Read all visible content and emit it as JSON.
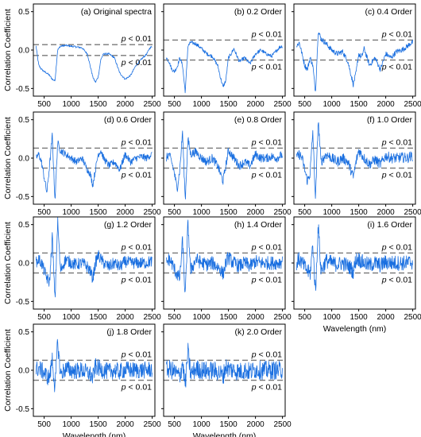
{
  "figure": {
    "ylabel": "Correlation Coefficient",
    "xlabel": "Wavelength (nm)",
    "threshold_label": "p < 0.01",
    "line_color": "#1a6fe0",
    "threshold_color": "#777777"
  },
  "chart_data": [
    {
      "type": "line",
      "title": "(a) Original spectra",
      "xlim": [
        300,
        2550
      ],
      "ylim": [
        -0.6,
        0.6
      ],
      "xticks": [
        500,
        1000,
        1500,
        2000,
        2500
      ],
      "yticks": [
        -0.5,
        0.0,
        0.5
      ],
      "threshold": [
        0.07,
        -0.07
      ],
      "x": [
        350,
        400,
        450,
        500,
        550,
        600,
        650,
        700,
        750,
        800,
        900,
        1000,
        1100,
        1200,
        1300,
        1350,
        1400,
        1450,
        1500,
        1550,
        1600,
        1700,
        1800,
        1900,
        2000,
        2100,
        2200,
        2300,
        2400,
        2450,
        2500
      ],
      "y": [
        0.05,
        -0.2,
        -0.25,
        -0.28,
        -0.3,
        -0.33,
        -0.38,
        -0.4,
        0.0,
        0.05,
        0.06,
        0.05,
        0.04,
        0.03,
        -0.05,
        -0.2,
        -0.35,
        -0.42,
        -0.35,
        -0.12,
        -0.05,
        -0.05,
        -0.1,
        -0.3,
        -0.38,
        -0.33,
        -0.2,
        -0.12,
        -0.05,
        0.02,
        0.05
      ]
    },
    {
      "type": "line",
      "title": "(b) 0.2 Order",
      "xlim": [
        300,
        2550
      ],
      "ylim": [
        -0.6,
        0.6
      ],
      "xticks": [
        500,
        1000,
        1500,
        2000,
        2500
      ],
      "yticks": [
        -0.5,
        0.0,
        0.5
      ],
      "threshold": [
        0.13,
        -0.13
      ],
      "x": [
        350,
        400,
        450,
        500,
        550,
        600,
        650,
        700,
        750,
        800,
        900,
        1000,
        1100,
        1200,
        1300,
        1350,
        1400,
        1450,
        1500,
        1550,
        1600,
        1700,
        1800,
        1900,
        2000,
        2100,
        2200,
        2300,
        2400,
        2450,
        2500
      ],
      "y": [
        -0.1,
        -0.15,
        -0.25,
        -0.28,
        -0.22,
        -0.1,
        -0.2,
        -0.55,
        0.05,
        0.1,
        0.08,
        0.02,
        -0.05,
        -0.08,
        -0.2,
        -0.35,
        -0.48,
        -0.4,
        -0.1,
        -0.05,
        0.02,
        -0.15,
        -0.1,
        -0.18,
        -0.05,
        0.0,
        -0.05,
        -0.08,
        0.0,
        0.04,
        0.05
      ]
    },
    {
      "type": "line",
      "title": "(c) 0.4 Order",
      "xlim": [
        300,
        2550
      ],
      "ylim": [
        -0.6,
        0.6
      ],
      "xticks": [
        500,
        1000,
        1500,
        2000,
        2500
      ],
      "yticks": [
        -0.5,
        0.0,
        0.5
      ],
      "threshold": [
        0.13,
        -0.13
      ],
      "x": [
        350,
        400,
        450,
        500,
        550,
        600,
        650,
        700,
        750,
        800,
        900,
        1000,
        1100,
        1200,
        1300,
        1350,
        1400,
        1450,
        1500,
        1550,
        1600,
        1700,
        1800,
        1900,
        2000,
        2100,
        2200,
        2300,
        2400,
        2450,
        2500
      ],
      "y": [
        0.05,
        0.1,
        -0.05,
        -0.2,
        -0.25,
        -0.1,
        -0.2,
        -0.55,
        0.25,
        0.15,
        0.08,
        0.0,
        -0.05,
        -0.02,
        -0.15,
        -0.3,
        -0.45,
        -0.3,
        -0.05,
        -0.1,
        0.02,
        -0.2,
        -0.1,
        -0.25,
        -0.05,
        -0.1,
        -0.02,
        0.0,
        0.05,
        0.08,
        0.1
      ]
    },
    {
      "type": "line",
      "title": "(d) 0.6 Order",
      "xlim": [
        300,
        2550
      ],
      "ylim": [
        -0.6,
        0.6
      ],
      "xticks": [
        500,
        1000,
        1500,
        2000,
        2500
      ],
      "yticks": [
        -0.5,
        0.0,
        0.5
      ],
      "threshold": [
        0.13,
        -0.13
      ],
      "x": [
        350,
        400,
        450,
        500,
        550,
        600,
        650,
        700,
        750,
        800,
        900,
        1000,
        1100,
        1200,
        1300,
        1350,
        1400,
        1450,
        1500,
        1550,
        1600,
        1700,
        1800,
        1900,
        2000,
        2100,
        2200,
        2300,
        2400,
        2450,
        2500
      ],
      "y": [
        0.0,
        0.05,
        -0.05,
        -0.25,
        -0.45,
        -0.1,
        0.3,
        -0.55,
        0.2,
        0.1,
        0.05,
        0.0,
        -0.05,
        0.0,
        -0.15,
        -0.2,
        -0.35,
        -0.15,
        0.05,
        0.1,
        0.0,
        -0.1,
        -0.05,
        -0.15,
        0.05,
        -0.05,
        0.0,
        0.02,
        0.0,
        0.03,
        0.05
      ]
    },
    {
      "type": "line",
      "title": "(e) 0.8 Order",
      "xlim": [
        300,
        2550
      ],
      "ylim": [
        -0.6,
        0.6
      ],
      "xticks": [
        500,
        1000,
        1500,
        2000,
        2500
      ],
      "yticks": [
        -0.5,
        0.0,
        0.5
      ],
      "threshold": [
        0.13,
        -0.13
      ],
      "x": [
        350,
        400,
        450,
        500,
        550,
        600,
        650,
        700,
        750,
        800,
        900,
        1000,
        1100,
        1200,
        1300,
        1350,
        1400,
        1450,
        1500,
        1550,
        1600,
        1700,
        1800,
        1900,
        2000,
        2100,
        2200,
        2300,
        2400,
        2450,
        2500
      ],
      "y": [
        0.0,
        0.05,
        -0.05,
        -0.2,
        -0.4,
        -0.15,
        0.35,
        -0.55,
        0.25,
        0.05,
        0.08,
        0.0,
        -0.05,
        0.0,
        -0.1,
        -0.2,
        -0.3,
        -0.1,
        0.1,
        0.05,
        0.0,
        -0.1,
        -0.05,
        -0.1,
        0.05,
        0.0,
        0.0,
        0.02,
        0.0,
        0.03,
        0.04
      ]
    },
    {
      "type": "line",
      "title": "(f) 1.0 Order",
      "xlim": [
        300,
        2550
      ],
      "ylim": [
        -0.6,
        0.6
      ],
      "xticks": [
        500,
        1000,
        1500,
        2000,
        2500
      ],
      "yticks": [
        -0.5,
        0.0,
        0.5
      ],
      "threshold": [
        0.13,
        -0.13
      ],
      "x": [
        350,
        400,
        450,
        500,
        550,
        600,
        650,
        700,
        750,
        800,
        900,
        1000,
        1100,
        1200,
        1300,
        1350,
        1400,
        1450,
        1500,
        1550,
        1600,
        1700,
        1800,
        1900,
        2000,
        2100,
        2200,
        2300,
        2400,
        2450,
        2500
      ],
      "y": [
        0.0,
        0.05,
        0.0,
        -0.15,
        -0.3,
        -0.2,
        0.35,
        -0.55,
        0.5,
        -0.05,
        0.05,
        0.0,
        -0.05,
        0.0,
        -0.05,
        -0.15,
        -0.25,
        -0.05,
        0.1,
        0.05,
        0.0,
        -0.08,
        -0.02,
        -0.08,
        0.03,
        0.0,
        0.0,
        0.01,
        0.0,
        0.02,
        0.03
      ]
    },
    {
      "type": "line",
      "title": "(g) 1.2 Order",
      "xlim": [
        300,
        2550
      ],
      "ylim": [
        -0.6,
        0.6
      ],
      "xticks": [
        500,
        1000,
        1500,
        2000,
        2500
      ],
      "yticks": [
        -0.5,
        0.0,
        0.5
      ],
      "threshold": [
        0.13,
        -0.13
      ],
      "x": [
        350,
        400,
        450,
        500,
        550,
        600,
        650,
        700,
        750,
        800,
        900,
        1000,
        1100,
        1200,
        1300,
        1350,
        1400,
        1450,
        1500,
        1550,
        1600,
        1700,
        1800,
        1900,
        2000,
        2100,
        2200,
        2300,
        2400,
        2450,
        2500
      ],
      "y": [
        0.0,
        0.05,
        0.0,
        -0.1,
        -0.2,
        -0.25,
        0.35,
        -0.5,
        0.55,
        -0.1,
        0.05,
        0.0,
        -0.02,
        0.0,
        -0.05,
        -0.1,
        -0.2,
        0.0,
        0.1,
        0.05,
        0.0,
        -0.05,
        0.0,
        -0.05,
        0.02,
        0.0,
        0.0,
        0.0,
        0.0,
        0.02,
        0.02
      ]
    },
    {
      "type": "line",
      "title": "(h) 1.4 Order",
      "xlim": [
        300,
        2550
      ],
      "ylim": [
        -0.6,
        0.6
      ],
      "xticks": [
        500,
        1000,
        1500,
        2000,
        2500
      ],
      "yticks": [
        -0.5,
        0.0,
        0.5
      ],
      "threshold": [
        0.13,
        -0.13
      ],
      "x": [
        350,
        400,
        450,
        500,
        550,
        600,
        650,
        700,
        750,
        800,
        900,
        1000,
        1100,
        1200,
        1300,
        1350,
        1400,
        1450,
        1500,
        1550,
        1600,
        1700,
        1800,
        1900,
        2000,
        2100,
        2200,
        2300,
        2400,
        2450,
        2500
      ],
      "y": [
        0.0,
        0.05,
        0.0,
        -0.08,
        -0.15,
        -0.2,
        0.3,
        -0.45,
        0.52,
        -0.1,
        0.05,
        0.0,
        -0.02,
        0.0,
        -0.05,
        -0.08,
        -0.15,
        0.0,
        0.08,
        0.03,
        0.0,
        -0.04,
        0.0,
        -0.04,
        0.02,
        0.0,
        0.0,
        0.0,
        0.0,
        0.01,
        0.02
      ]
    },
    {
      "type": "line",
      "title": "(i) 1.6 Order",
      "xlim": [
        300,
        2550
      ],
      "ylim": [
        -0.6,
        0.6
      ],
      "xticks": [
        500,
        1000,
        1500,
        2000,
        2500
      ],
      "yticks": [
        -0.5,
        0.0,
        0.5
      ],
      "threshold": [
        0.13,
        -0.13
      ],
      "x": [
        350,
        400,
        450,
        500,
        550,
        600,
        650,
        700,
        750,
        800,
        900,
        1000,
        1100,
        1200,
        1300,
        1350,
        1400,
        1450,
        1500,
        1550,
        1600,
        1700,
        1800,
        1900,
        2000,
        2100,
        2200,
        2300,
        2400,
        2450,
        2500
      ],
      "y": [
        0.0,
        0.05,
        0.0,
        -0.05,
        -0.1,
        -0.15,
        0.25,
        -0.4,
        0.5,
        -0.1,
        0.03,
        0.0,
        -0.02,
        0.0,
        -0.04,
        -0.06,
        -0.12,
        0.05,
        0.05,
        0.02,
        0.0,
        -0.03,
        0.0,
        -0.03,
        0.01,
        0.0,
        0.0,
        0.0,
        0.0,
        0.01,
        0.01
      ]
    },
    {
      "type": "line",
      "title": "(j) 1.8 Order",
      "xlim": [
        300,
        2550
      ],
      "ylim": [
        -0.6,
        0.6
      ],
      "xticks": [
        500,
        1000,
        1500,
        2000,
        2500
      ],
      "yticks": [
        -0.5,
        0.0,
        0.5
      ],
      "threshold": [
        0.13,
        -0.13
      ],
      "x": [
        350,
        400,
        450,
        500,
        550,
        600,
        650,
        700,
        750,
        800,
        900,
        1000,
        1100,
        1200,
        1300,
        1350,
        1400,
        1450,
        1500,
        1550,
        1600,
        1700,
        1800,
        1900,
        2000,
        2100,
        2200,
        2300,
        2400,
        2450,
        2500
      ],
      "y": [
        0.0,
        0.03,
        0.0,
        -0.03,
        -0.08,
        -0.1,
        0.15,
        -0.25,
        0.38,
        -0.05,
        0.02,
        0.0,
        -0.01,
        0.0,
        -0.03,
        -0.05,
        -0.1,
        0.05,
        0.03,
        0.01,
        0.0,
        -0.02,
        0.0,
        -0.02,
        0.01,
        0.0,
        0.0,
        0.0,
        0.0,
        0.01,
        0.01
      ]
    },
    {
      "type": "line",
      "title": "(k) 2.0 Order",
      "xlim": [
        300,
        2550
      ],
      "ylim": [
        -0.6,
        0.6
      ],
      "xticks": [
        500,
        1000,
        1500,
        2000,
        2500
      ],
      "yticks": [
        -0.5,
        0.0,
        0.5
      ],
      "threshold": [
        0.13,
        -0.13
      ],
      "x": [
        350,
        400,
        450,
        500,
        550,
        600,
        650,
        700,
        750,
        800,
        900,
        1000,
        1100,
        1200,
        1300,
        1350,
        1400,
        1450,
        1500,
        1550,
        1600,
        1700,
        1800,
        1900,
        2000,
        2100,
        2200,
        2300,
        2400,
        2450,
        2500
      ],
      "y": [
        0.0,
        0.02,
        0.0,
        -0.02,
        -0.05,
        -0.08,
        0.1,
        -0.2,
        0.25,
        -0.05,
        0.02,
        0.0,
        -0.01,
        0.0,
        -0.02,
        -0.04,
        -0.08,
        0.05,
        0.02,
        0.01,
        0.0,
        -0.02,
        0.0,
        -0.02,
        0.01,
        0.0,
        0.0,
        0.0,
        0.0,
        0.0,
        0.01
      ]
    }
  ]
}
